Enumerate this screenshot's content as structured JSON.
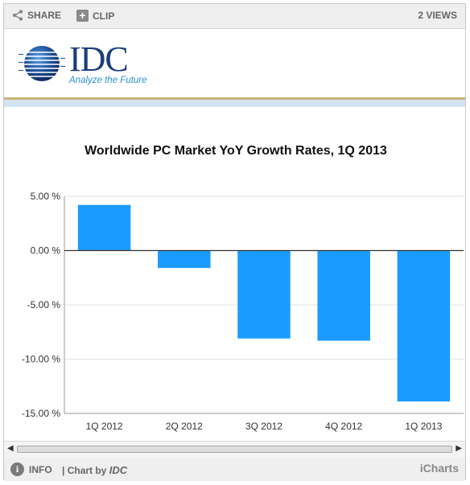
{
  "toolbar": {
    "share_label": "SHARE",
    "clip_label": "CLIP",
    "views_label": "2 VIEWS"
  },
  "logo": {
    "brand": "IDC",
    "tagline": "Analyze the Future"
  },
  "footer": {
    "info_label": "INFO",
    "chart_by_prefix": "| Chart by ",
    "chart_by_brand": "IDC",
    "provider": "iCharts"
  },
  "colors": {
    "bar": "#1a9bff",
    "gridline": "#e2e2e2",
    "axis": "#333333"
  },
  "chart_data": {
    "type": "bar",
    "title": "Worldwide PC Market YoY Growth  Rates, 1Q 2013",
    "xlabel": "",
    "ylabel": "",
    "categories": [
      "1Q 2012",
      "2Q 2012",
      "3Q 2012",
      "4Q 2012",
      "1Q 2013"
    ],
    "values": [
      4.2,
      -1.6,
      -8.1,
      -8.3,
      -13.9
    ],
    "ylim": [
      -15,
      5
    ],
    "yticks": [
      5,
      0,
      -5,
      -10,
      -15
    ],
    "ytick_labels": [
      "5.00 %",
      "0.00 %",
      "-5.00 %",
      "-10.00 %",
      "-15.00 %"
    ],
    "grid": true,
    "legend": "none"
  }
}
